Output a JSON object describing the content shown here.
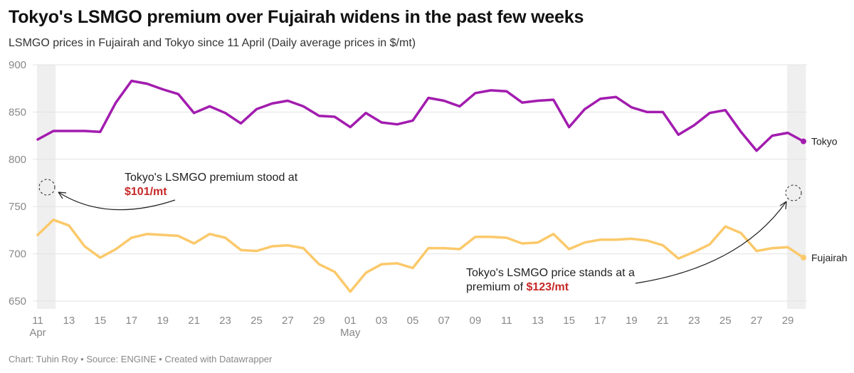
{
  "title": "Tokyo's LSMGO premium over Fujairah widens in the past few weeks",
  "subtitle": "LSMGO prices in Fujairah and Tokyo since 11 April (Daily average prices in $/mt)",
  "footer": "Chart: Tuhin Roy • Source: ENGINE • Created with Datawrapper",
  "annotations": {
    "left": {
      "line1": "Tokyo's LSMGO premium stood at",
      "value": "$101/mt"
    },
    "right": {
      "line1": "Tokyo's LSMGO price stands at a",
      "line2_prefix": "premium of ",
      "value": "$123/mt"
    }
  },
  "colors": {
    "tokyo": "#a21caf",
    "fujairah": "#fbc96b",
    "highlight": "#c62828",
    "shade": "#efefef",
    "grid": "#e3e3e3"
  },
  "chart_data": {
    "type": "line",
    "x": [
      "Apr 11",
      "Apr 12",
      "Apr 13",
      "Apr 14",
      "Apr 15",
      "Apr 16",
      "Apr 17",
      "Apr 18",
      "Apr 19",
      "Apr 20",
      "Apr 21",
      "Apr 22",
      "Apr 23",
      "Apr 24",
      "Apr 25",
      "Apr 26",
      "Apr 27",
      "Apr 28",
      "Apr 29",
      "Apr 30",
      "May 01",
      "May 02",
      "May 03",
      "May 04",
      "May 05",
      "May 06",
      "May 07",
      "May 08",
      "May 09",
      "May 10",
      "May 11",
      "May 12",
      "May 13",
      "May 14",
      "May 15",
      "May 16",
      "May 17",
      "May 18",
      "May 19",
      "May 20",
      "May 21",
      "May 22",
      "May 23",
      "May 24",
      "May 25",
      "May 26",
      "May 27",
      "May 28",
      "May 29",
      "May 30"
    ],
    "series": [
      {
        "name": "Tokyo",
        "values": [
          821,
          830,
          830,
          830,
          829,
          860,
          883,
          880,
          874,
          869,
          849,
          856,
          849,
          838,
          853,
          859,
          862,
          856,
          846,
          845,
          834,
          849,
          839,
          837,
          841,
          865,
          862,
          856,
          870,
          873,
          872,
          860,
          862,
          863,
          834,
          853,
          864,
          866,
          855,
          850,
          850,
          826,
          836,
          849,
          852,
          829,
          809,
          825,
          828,
          819
        ]
      },
      {
        "name": "Fujairah",
        "values": [
          720,
          736,
          730,
          708,
          696,
          705,
          717,
          721,
          720,
          719,
          711,
          721,
          717,
          704,
          703,
          708,
          709,
          706,
          689,
          681,
          660,
          680,
          689,
          690,
          685,
          706,
          706,
          705,
          718,
          718,
          717,
          711,
          712,
          721,
          705,
          712,
          715,
          715,
          716,
          714,
          709,
          695,
          702,
          710,
          729,
          722,
          703,
          706,
          707,
          696
        ]
      }
    ],
    "y_ticks": [
      900,
      850,
      800,
      750,
      700,
      650
    ],
    "ylim": [
      640,
      900
    ],
    "x_ticks": [
      {
        "index": 0,
        "label": "11",
        "sub": "Apr"
      },
      {
        "index": 2,
        "label": "13"
      },
      {
        "index": 4,
        "label": "15"
      },
      {
        "index": 6,
        "label": "17"
      },
      {
        "index": 8,
        "label": "19"
      },
      {
        "index": 10,
        "label": "21"
      },
      {
        "index": 12,
        "label": "23"
      },
      {
        "index": 14,
        "label": "25"
      },
      {
        "index": 16,
        "label": "27"
      },
      {
        "index": 18,
        "label": "29"
      },
      {
        "index": 20,
        "label": "01",
        "sub": "May"
      },
      {
        "index": 22,
        "label": "03"
      },
      {
        "index": 24,
        "label": "05"
      },
      {
        "index": 26,
        "label": "07"
      },
      {
        "index": 28,
        "label": "09"
      },
      {
        "index": 30,
        "label": "11"
      },
      {
        "index": 32,
        "label": "13"
      },
      {
        "index": 34,
        "label": "15"
      },
      {
        "index": 36,
        "label": "17"
      },
      {
        "index": 38,
        "label": "19"
      },
      {
        "index": 40,
        "label": "21"
      },
      {
        "index": 42,
        "label": "23"
      },
      {
        "index": 44,
        "label": "25"
      },
      {
        "index": 46,
        "label": "27"
      },
      {
        "index": 48,
        "label": "29"
      }
    ],
    "highlight_ranges": [
      [
        0,
        1
      ],
      [
        48,
        49
      ]
    ],
    "grid": true
  }
}
